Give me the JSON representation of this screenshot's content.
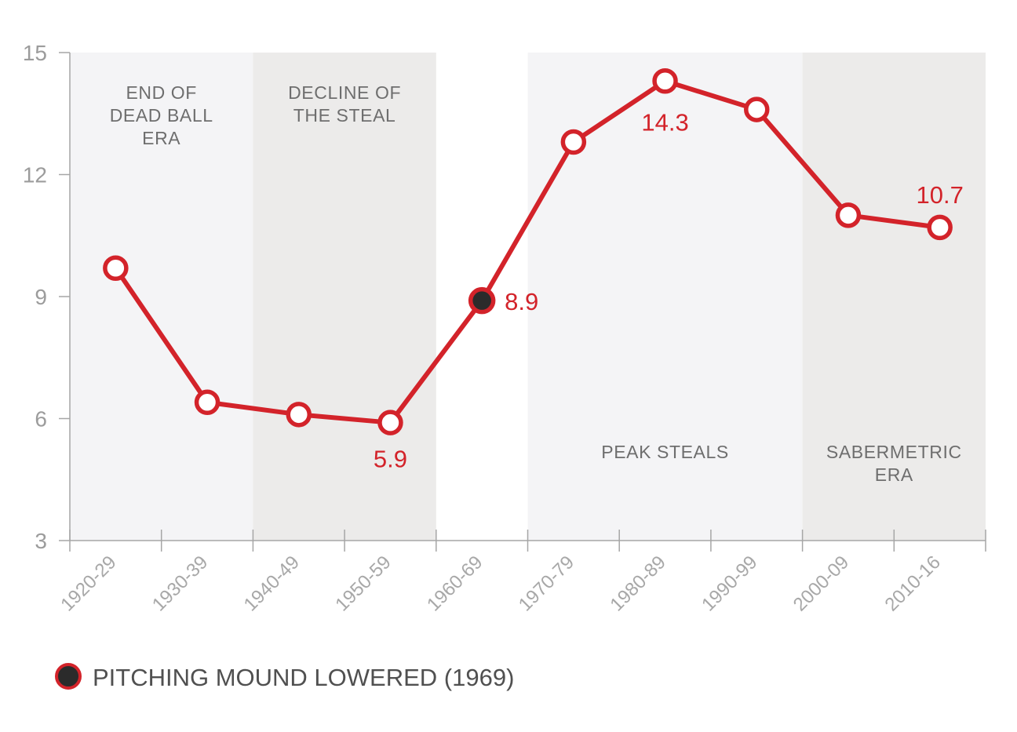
{
  "chart_data": {
    "type": "line",
    "categories": [
      "1920-29",
      "1930-39",
      "1940-49",
      "1950-59",
      "1960-69",
      "1970-79",
      "1980-89",
      "1990-99",
      "2000-09",
      "2010-16"
    ],
    "values": [
      9.7,
      6.4,
      6.1,
      5.9,
      8.9,
      12.8,
      14.3,
      13.6,
      11.0,
      10.7
    ],
    "ylim": [
      3,
      15
    ],
    "yticks": [
      3,
      6,
      9,
      12,
      15
    ],
    "highlight_index": 4,
    "data_labels": [
      {
        "index": 3,
        "text": "5.9"
      },
      {
        "index": 4,
        "text": "8.9"
      },
      {
        "index": 6,
        "text": "14.3"
      },
      {
        "index": 9,
        "text": "10.7"
      }
    ],
    "eras": [
      {
        "name": "end-of-dead-ball-era",
        "start": 0,
        "end": 2,
        "lines": [
          "END OF",
          "DEAD BALL",
          "ERA"
        ],
        "label_position": "top",
        "color": "#f4f4f6"
      },
      {
        "name": "decline-of-the-steal",
        "start": 2,
        "end": 4,
        "lines": [
          "DECLINE OF",
          "THE STEAL"
        ],
        "label_position": "top",
        "color": "#ecebea"
      },
      {
        "name": "peak-steals",
        "start": 5,
        "end": 8,
        "lines": [
          "PEAK STEALS"
        ],
        "label_position": "bottom",
        "color": "#f4f4f6"
      },
      {
        "name": "sabermetric-era",
        "start": 8,
        "end": 10,
        "lines": [
          "SABERMETRIC",
          "ERA"
        ],
        "label_position": "bottom",
        "color": "#ecebea"
      }
    ],
    "legend": [
      {
        "label": "PITCHING MOUND LOWERED (1969)",
        "marker": "filled-dark-circle"
      }
    ],
    "legend_position": "bottom-left",
    "grid": false,
    "colors": {
      "line": "#d3232a",
      "marker_fill": "#ffffff",
      "highlight_fill": "#2b2b2b",
      "axis": "#a6a6a6",
      "label": "#d3232a"
    }
  }
}
